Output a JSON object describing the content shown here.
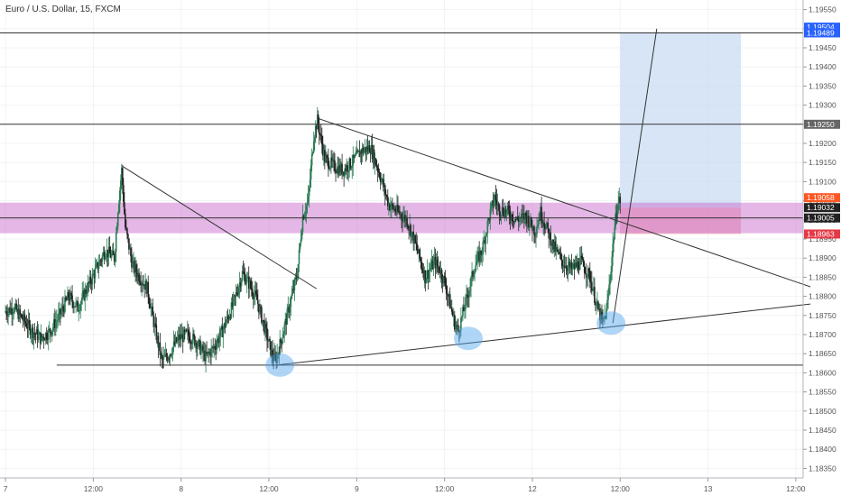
{
  "chart_title": "Euro / U.S. Dollar, 15, FXCM",
  "colors": {
    "up_candle": "#2e7d57",
    "down_candle": "#222222",
    "grid": "#f1f3f6",
    "trendline": "#333333",
    "zone": "#c45fc8",
    "target_box": "#c9dcf3",
    "stop_box": "#f6b8bf",
    "circle": "#4fa3ee",
    "badge_blue": "#2962ff",
    "badge_gray": "#666666",
    "badge_dark": "#222222",
    "badge_red": "#e53946",
    "badge_orange": "#ff5722"
  },
  "chart_data": {
    "type": "candlestick",
    "symbol": "Euro / U.S. Dollar",
    "timeframe": "15",
    "source": "FXCM",
    "ylim": [
      1.18325,
      1.19575
    ],
    "y_ticks": [
      "1.18350",
      "1.18400",
      "1.18450",
      "1.18500",
      "1.18550",
      "1.18600",
      "1.18650",
      "1.18700",
      "1.18750",
      "1.18800",
      "1.18850",
      "1.18900",
      "1.18950",
      "1.19000",
      "1.19050",
      "1.19100",
      "1.19150",
      "1.19200",
      "1.19250",
      "1.19300",
      "1.19350",
      "1.19400",
      "1.19450",
      "1.19500",
      "1.19550"
    ],
    "x_ticks": [
      {
        "label": "7",
        "t": 0
      },
      {
        "label": "12:00",
        "t": 48
      },
      {
        "label": "8",
        "t": 96
      },
      {
        "label": "12:00",
        "t": 144
      },
      {
        "label": "9",
        "t": 192
      },
      {
        "label": "12:00",
        "t": 240
      },
      {
        "label": "12",
        "t": 288
      },
      {
        "label": "12:00",
        "t": 336
      },
      {
        "label": "13",
        "t": 384
      },
      {
        "label": "12:00",
        "t": 432
      }
    ],
    "x_range": [
      -3,
      436
    ],
    "price_path": [
      [
        0,
        1.1876
      ],
      [
        5,
        1.1877
      ],
      [
        10,
        1.1874
      ],
      [
        15,
        1.1871
      ],
      [
        20,
        1.1869
      ],
      [
        25,
        1.1871
      ],
      [
        30,
        1.1875
      ],
      [
        35,
        1.188
      ],
      [
        40,
        1.1877
      ],
      [
        45,
        1.1882
      ],
      [
        50,
        1.1887
      ],
      [
        55,
        1.1892
      ],
      [
        60,
        1.189
      ],
      [
        62,
        1.1903
      ],
      [
        64,
        1.1913
      ],
      [
        66,
        1.1898
      ],
      [
        70,
        1.1888
      ],
      [
        74,
        1.1885
      ],
      [
        78,
        1.1882
      ],
      [
        82,
        1.1872
      ],
      [
        86,
        1.1863
      ],
      [
        90,
        1.1865
      ],
      [
        95,
        1.1869
      ],
      [
        100,
        1.187
      ],
      [
        105,
        1.1868
      ],
      [
        110,
        1.1864
      ],
      [
        115,
        1.1867
      ],
      [
        120,
        1.1872
      ],
      [
        125,
        1.1878
      ],
      [
        130,
        1.1886
      ],
      [
        134,
        1.1883
      ],
      [
        138,
        1.1879
      ],
      [
        142,
        1.1872
      ],
      [
        146,
        1.1865
      ],
      [
        148,
        1.1863
      ],
      [
        152,
        1.187
      ],
      [
        156,
        1.1878
      ],
      [
        160,
        1.1886
      ],
      [
        163,
        1.1901
      ],
      [
        166,
        1.1905
      ],
      [
        169,
        1.1922
      ],
      [
        171,
        1.1926
      ],
      [
        175,
        1.1916
      ],
      [
        180,
        1.1914
      ],
      [
        185,
        1.1913
      ],
      [
        190,
        1.1915
      ],
      [
        195,
        1.1918
      ],
      [
        200,
        1.1919
      ],
      [
        205,
        1.1912
      ],
      [
        210,
        1.1904
      ],
      [
        215,
        1.1902
      ],
      [
        220,
        1.19
      ],
      [
        225,
        1.1893
      ],
      [
        230,
        1.1885
      ],
      [
        235,
        1.1889
      ],
      [
        238,
        1.1887
      ],
      [
        241,
        1.1883
      ],
      [
        246,
        1.1873
      ],
      [
        248,
        1.1871
      ],
      [
        253,
        1.188
      ],
      [
        257,
        1.1888
      ],
      [
        261,
        1.1892
      ],
      [
        265,
        1.1901
      ],
      [
        268,
        1.1906
      ],
      [
        270,
        1.1903
      ],
      [
        275,
        1.1902
      ],
      [
        280,
        1.19
      ],
      [
        285,
        1.1901
      ],
      [
        290,
        1.1897
      ],
      [
        293,
        1.1902
      ],
      [
        297,
        1.1897
      ],
      [
        300,
        1.1893
      ],
      [
        305,
        1.1889
      ],
      [
        310,
        1.1887
      ],
      [
        315,
        1.1889
      ],
      [
        320,
        1.1885
      ],
      [
        324,
        1.1877
      ],
      [
        327,
        1.1873
      ],
      [
        329,
        1.1876
      ],
      [
        331,
        1.1885
      ],
      [
        333,
        1.1896
      ],
      [
        335,
        1.1904
      ],
      [
        336,
        1.1905
      ]
    ],
    "horizontal_levels": [
      1.19489,
      1.1925,
      1.1862
    ],
    "zone": {
      "low": 1.18965,
      "high": 1.19045
    },
    "trendlines": [
      {
        "from": [
          64,
          1.1914
        ],
        "to": [
          170,
          1.1882
        ]
      },
      {
        "from": [
          171,
          1.19265
        ],
        "to": [
          440,
          1.18825
        ]
      },
      {
        "from": [
          148,
          1.1862
        ],
        "to": [
          440,
          1.1878
        ]
      },
      {
        "from": [
          332,
          1.1873
        ],
        "to": [
          356,
          1.195
        ]
      }
    ],
    "target_box": {
      "t_start": 336,
      "t_end": 402,
      "low": 1.19032,
      "high": 1.19489
    },
    "stop_box": {
      "t_start": 336,
      "t_end": 402,
      "low": 1.18963,
      "high": 1.19032
    },
    "circles": [
      {
        "t": 150,
        "price": 1.1862
      },
      {
        "t": 253,
        "price": 1.1869
      },
      {
        "t": 331,
        "price": 1.1873
      }
    ],
    "price_badges": [
      {
        "label": "1.19504",
        "price": 1.19504,
        "style": "blue"
      },
      {
        "label": "1.19489",
        "price": 1.19489,
        "style": "blue"
      },
      {
        "label": "1.19250",
        "price": 1.1925,
        "style": "gray"
      },
      {
        "label": "1.19058",
        "price": 1.19058,
        "style": "orange"
      },
      {
        "label": "1.19032",
        "price": 1.19032,
        "style": "dark"
      },
      {
        "label": "1.19005",
        "price": 1.19005,
        "style": "dark"
      },
      {
        "label": "1.18963",
        "price": 1.18963,
        "style": "red"
      }
    ]
  }
}
